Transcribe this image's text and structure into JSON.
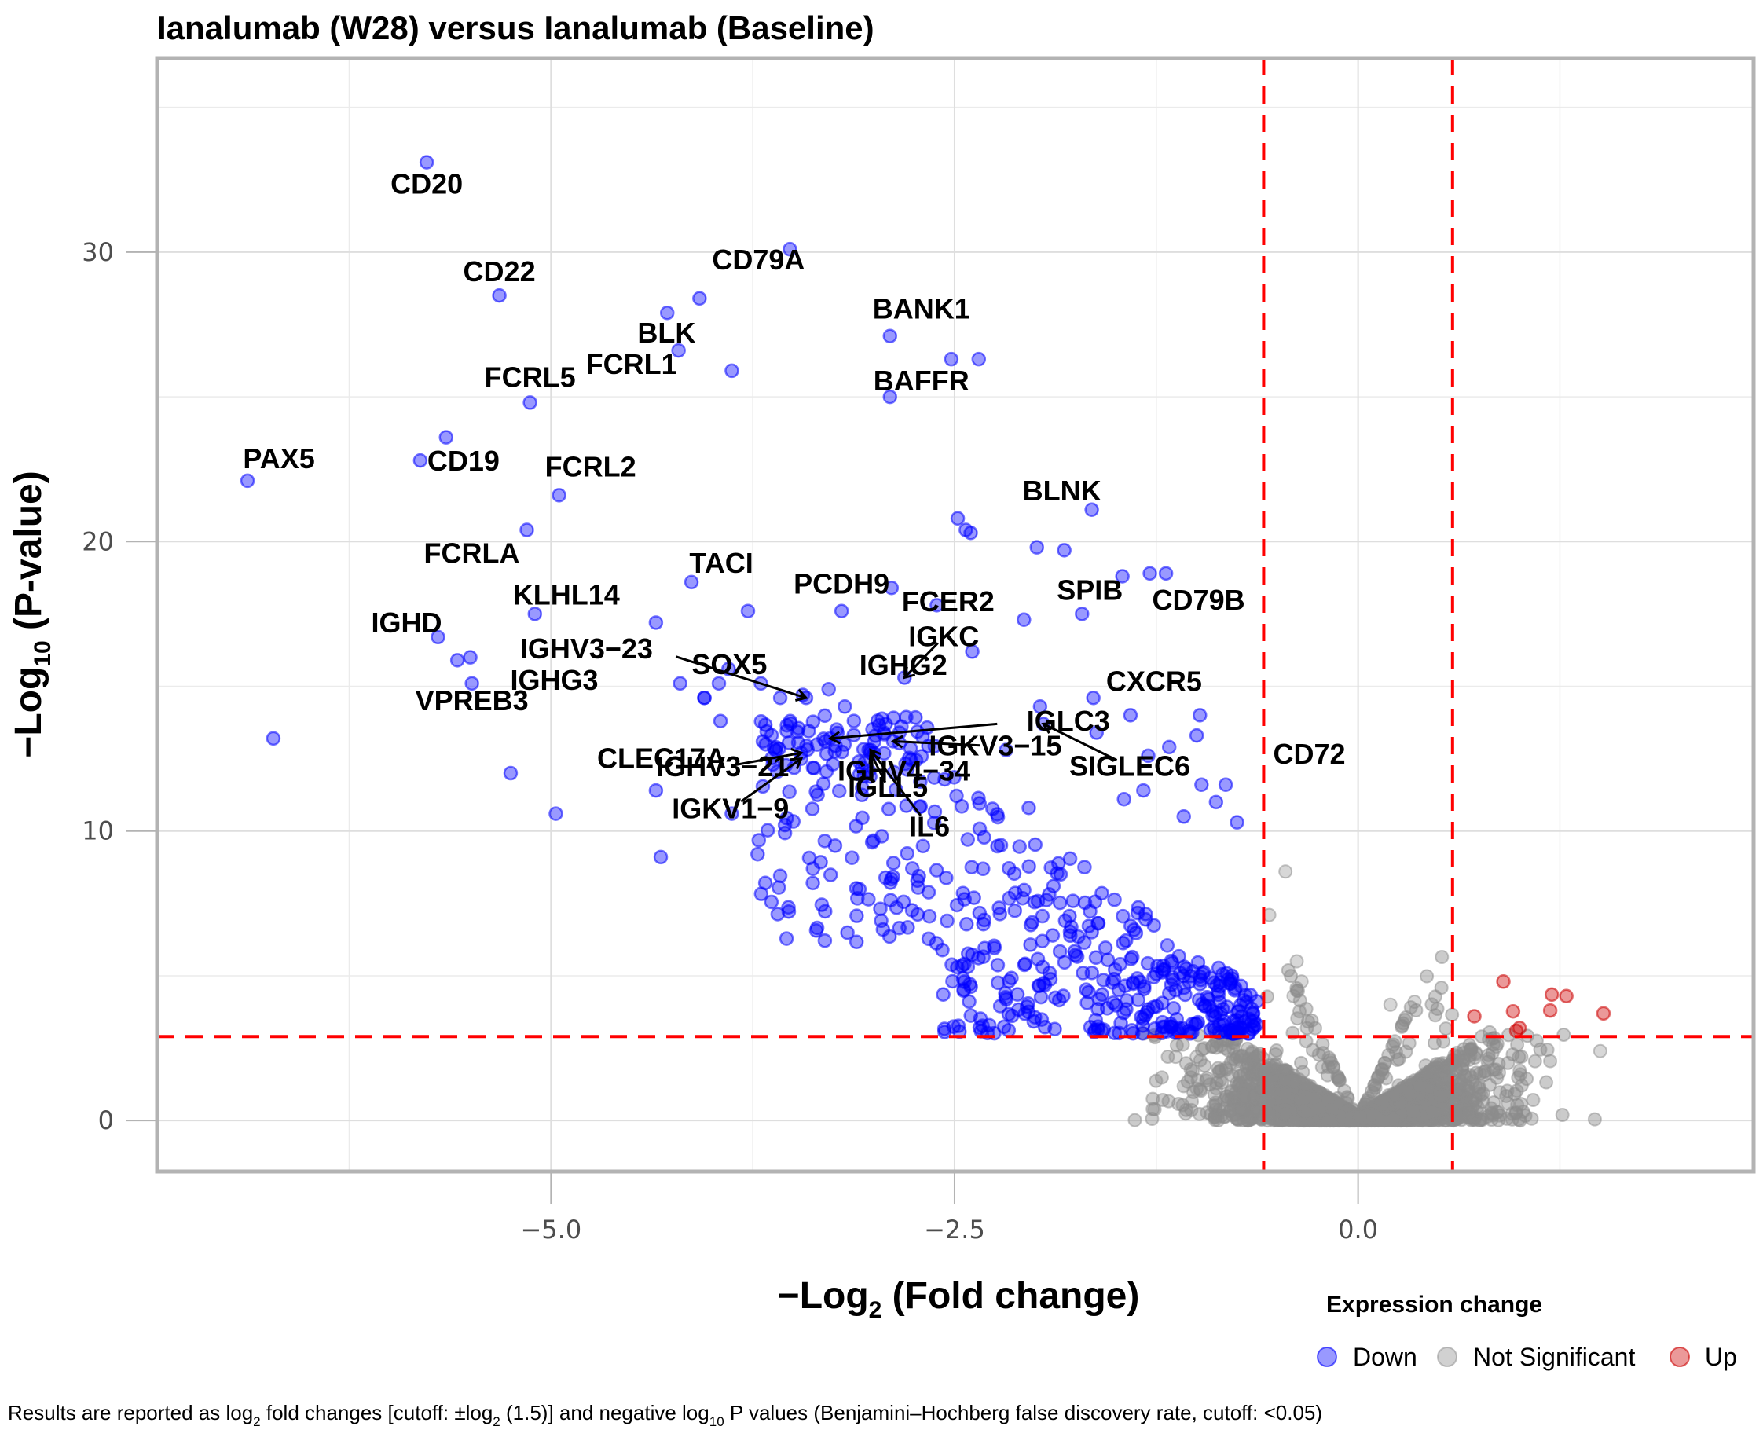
{
  "chart_data": {
    "type": "scatter",
    "title": "Ianalumab (W28) versus Ianalumab (Baseline)",
    "xlabel": "−Log2 (Fold change)",
    "xlabel_main": "−Log",
    "xlabel_sub": "2",
    "xlabel_rest": " (Fold change)",
    "ylabel": "−Log10 (P-value)",
    "ylabel_main": "−Log",
    "ylabel_sub": "10",
    "ylabel_rest": " (P-value)",
    "xlim": [
      -7.44,
      2.45
    ],
    "ylim": [
      -1.76,
      36.7
    ],
    "x_ticks": [
      {
        "value": -5.0,
        "label": "−5.0"
      },
      {
        "value": -2.5,
        "label": "−2.5"
      },
      {
        "value": 0.0,
        "label": "0.0"
      }
    ],
    "x_minor_gridlines": [
      -6.25,
      -3.75,
      -1.25,
      1.25
    ],
    "y_ticks": [
      {
        "value": 0,
        "label": "0"
      },
      {
        "value": 10,
        "label": "10"
      },
      {
        "value": 20,
        "label": "20"
      },
      {
        "value": 30,
        "label": "30"
      }
    ],
    "y_minor_gridlines": [
      5,
      15,
      25,
      35
    ],
    "grid": true,
    "thresholds": {
      "log2fc_cutoff": 0.585,
      "neg_log10_p_cutoff": 2.9,
      "line_color": "#ff0000"
    },
    "legend": {
      "title": "Expression change",
      "position": "bottom-right",
      "items": [
        {
          "label": "Down",
          "color": "#0000ff"
        },
        {
          "label": "Not Significant",
          "color": "#999999"
        },
        {
          "label": "Up",
          "color": "#cc0000"
        }
      ]
    },
    "colors": {
      "Down": "#0000ff",
      "Not Significant": "#8c8c8c",
      "Up": "#d62728"
    },
    "labeled_genes": [
      {
        "gene": "CD20",
        "x": -5.77,
        "y": 33.1,
        "category": "Down",
        "label_dx": 0,
        "label_dy": 1
      },
      {
        "gene": "CD22",
        "x": -5.32,
        "y": 28.5,
        "category": "Down"
      },
      {
        "gene": "CD79A",
        "x": -3.52,
        "y": 30.1,
        "category": "Down"
      },
      {
        "gene": "BLK",
        "x": -4.08,
        "y": 28.4,
        "category": "Down"
      },
      {
        "gene": "FCRL1",
        "x": -4.21,
        "y": 26.6,
        "category": "Down"
      },
      {
        "gene": "BANK1",
        "x": -2.9,
        "y": 27.1,
        "category": "Down"
      },
      {
        "gene": "BAFFR",
        "x": -2.9,
        "y": 25.0,
        "category": "Down"
      },
      {
        "gene": "FCRL5",
        "x": -5.13,
        "y": 24.8,
        "category": "Down"
      },
      {
        "gene": "PAX5",
        "x": -6.88,
        "y": 22.1,
        "category": "Down"
      },
      {
        "gene": "CD19",
        "x": -5.81,
        "y": 22.8,
        "category": "Down"
      },
      {
        "gene": "FCRL2",
        "x": -4.95,
        "y": 21.6,
        "category": "Down"
      },
      {
        "gene": "FCRLA",
        "x": -5.15,
        "y": 20.4,
        "category": "Down"
      },
      {
        "gene": "TACI",
        "x": -4.13,
        "y": 18.6,
        "category": "Down"
      },
      {
        "gene": "KLHL14",
        "x": -5.1,
        "y": 17.5,
        "category": "Down"
      },
      {
        "gene": "IGHD",
        "x": -5.7,
        "y": 16.7,
        "category": "Down"
      },
      {
        "gene": "VPREB3",
        "x": -5.49,
        "y": 15.1,
        "category": "Down"
      },
      {
        "gene": "BLNK",
        "x": -1.65,
        "y": 21.1,
        "category": "Down"
      },
      {
        "gene": "FCER2",
        "x": -2.89,
        "y": 18.4,
        "category": "Down"
      },
      {
        "gene": "CD79B",
        "x": -1.29,
        "y": 18.9,
        "category": "Down"
      },
      {
        "gene": "SPIB",
        "x": -1.71,
        "y": 17.5,
        "category": "Down"
      },
      {
        "gene": "PCDH9",
        "x": -3.2,
        "y": 17.6,
        "category": "Down"
      },
      {
        "gene": "IGKC",
        "x": -2.81,
        "y": 15.3,
        "category": "Down"
      },
      {
        "gene": "IGHV3−23",
        "x": -3.42,
        "y": 14.6,
        "category": "Down"
      },
      {
        "gene": "IGHG3",
        "x": -4.05,
        "y": 14.6,
        "category": "Down"
      },
      {
        "gene": "SOX5",
        "x": -3.7,
        "y": 15.1,
        "category": "Down"
      },
      {
        "gene": "IGHG2",
        "x": -3.28,
        "y": 14.9,
        "category": "Down"
      },
      {
        "gene": "IGLC3",
        "x": -3.27,
        "y": 13.2,
        "category": "Down"
      },
      {
        "gene": "IGHV4−34",
        "x": -3.3,
        "y": 13.1,
        "category": "Down"
      },
      {
        "gene": "CLEC17A",
        "x": -3.95,
        "y": 13.8,
        "category": "Down"
      },
      {
        "gene": "IGKV3−15",
        "x": -2.88,
        "y": 13.1,
        "category": "Down"
      },
      {
        "gene": "CXCR5",
        "x": -1.97,
        "y": 14.3,
        "category": "Down"
      },
      {
        "gene": "CD72",
        "x": -1.3,
        "y": 12.6,
        "category": "Down"
      },
      {
        "gene": "SIGLEC6",
        "x": -1.95,
        "y": 13.7,
        "category": "Down"
      },
      {
        "gene": "IGHV3−21",
        "x": -3.45,
        "y": 12.7,
        "category": "Down"
      },
      {
        "gene": "IGKV1−9",
        "x": -3.45,
        "y": 12.5,
        "category": "Down"
      },
      {
        "gene": "IGLL5",
        "x": -3.02,
        "y": 12.7,
        "category": "Down"
      },
      {
        "gene": "IL6",
        "x": -3.02,
        "y": 12.8,
        "category": "Down"
      }
    ],
    "other_down_points": [
      [
        -5.65,
        23.6
      ],
      [
        -4.28,
        27.9
      ],
      [
        -3.88,
        25.9
      ],
      [
        -2.52,
        26.3
      ],
      [
        -2.35,
        26.3
      ],
      [
        -6.72,
        13.2
      ],
      [
        -5.25,
        12.0
      ],
      [
        -4.97,
        10.6
      ],
      [
        -4.35,
        11.4
      ],
      [
        -4.32,
        9.1
      ],
      [
        -3.88,
        10.6
      ],
      [
        -3.72,
        9.2
      ],
      [
        -2.48,
        20.8
      ],
      [
        -2.43,
        20.4
      ],
      [
        -2.4,
        20.3
      ],
      [
        -1.99,
        19.8
      ],
      [
        -1.82,
        19.7
      ],
      [
        -1.46,
        18.8
      ],
      [
        -1.19,
        18.9
      ],
      [
        -2.07,
        17.3
      ],
      [
        -2.39,
        16.2
      ],
      [
        -2.61,
        17.8
      ],
      [
        -3.78,
        17.6
      ],
      [
        -4.35,
        17.2
      ],
      [
        -5.5,
        16.0
      ],
      [
        -5.58,
        15.9
      ],
      [
        -4.2,
        15.1
      ],
      [
        -3.9,
        15.6
      ],
      [
        -3.96,
        15.1
      ],
      [
        -4.05,
        14.6
      ],
      [
        -3.58,
        14.6
      ],
      [
        -3.44,
        14.7
      ],
      [
        -3.18,
        14.3
      ],
      [
        -1.64,
        14.6
      ],
      [
        -1.62,
        13.4
      ],
      [
        -1.41,
        14.0
      ],
      [
        -0.98,
        14.0
      ],
      [
        -1.0,
        13.3
      ],
      [
        -1.17,
        12.9
      ],
      [
        -2.18,
        12.8
      ],
      [
        -2.04,
        10.8
      ],
      [
        -1.33,
        11.4
      ],
      [
        -1.45,
        11.1
      ],
      [
        -0.97,
        11.6
      ],
      [
        -0.82,
        11.6
      ],
      [
        -0.88,
        11.0
      ],
      [
        -1.08,
        10.5
      ],
      [
        -0.75,
        10.3
      ]
    ],
    "up_points": [
      [
        0.9,
        4.8
      ],
      [
        0.72,
        3.6
      ],
      [
        0.96,
        3.77
      ],
      [
        1.2,
        4.35
      ],
      [
        1.29,
        4.3
      ],
      [
        1.19,
        3.8
      ],
      [
        1.52,
        3.7
      ],
      [
        1.0,
        3.2
      ],
      [
        0.98,
        3.1
      ]
    ],
    "not_significant_summary": "Dense V-shaped cloud centered at x=0 from y=0 up to about 3, spanning roughly x -1.3 to 1.7, with scattered grey points up to y≈8.6 near x≈-0.45"
  },
  "footnote": {
    "text_parts": [
      {
        "t": "Results are reported as log",
        "sub": false
      },
      {
        "t": "2",
        "sub": true
      },
      {
        "t": " fold changes [cutoff: ±log",
        "sub": false
      },
      {
        "t": "2",
        "sub": true
      },
      {
        "t": " (1.5)] and negative log",
        "sub": false
      },
      {
        "t": "10",
        "sub": true
      },
      {
        "t": " P values (Benjamini–Hochberg false discovery rate, cutoff: <0.05)",
        "sub": false
      }
    ]
  }
}
